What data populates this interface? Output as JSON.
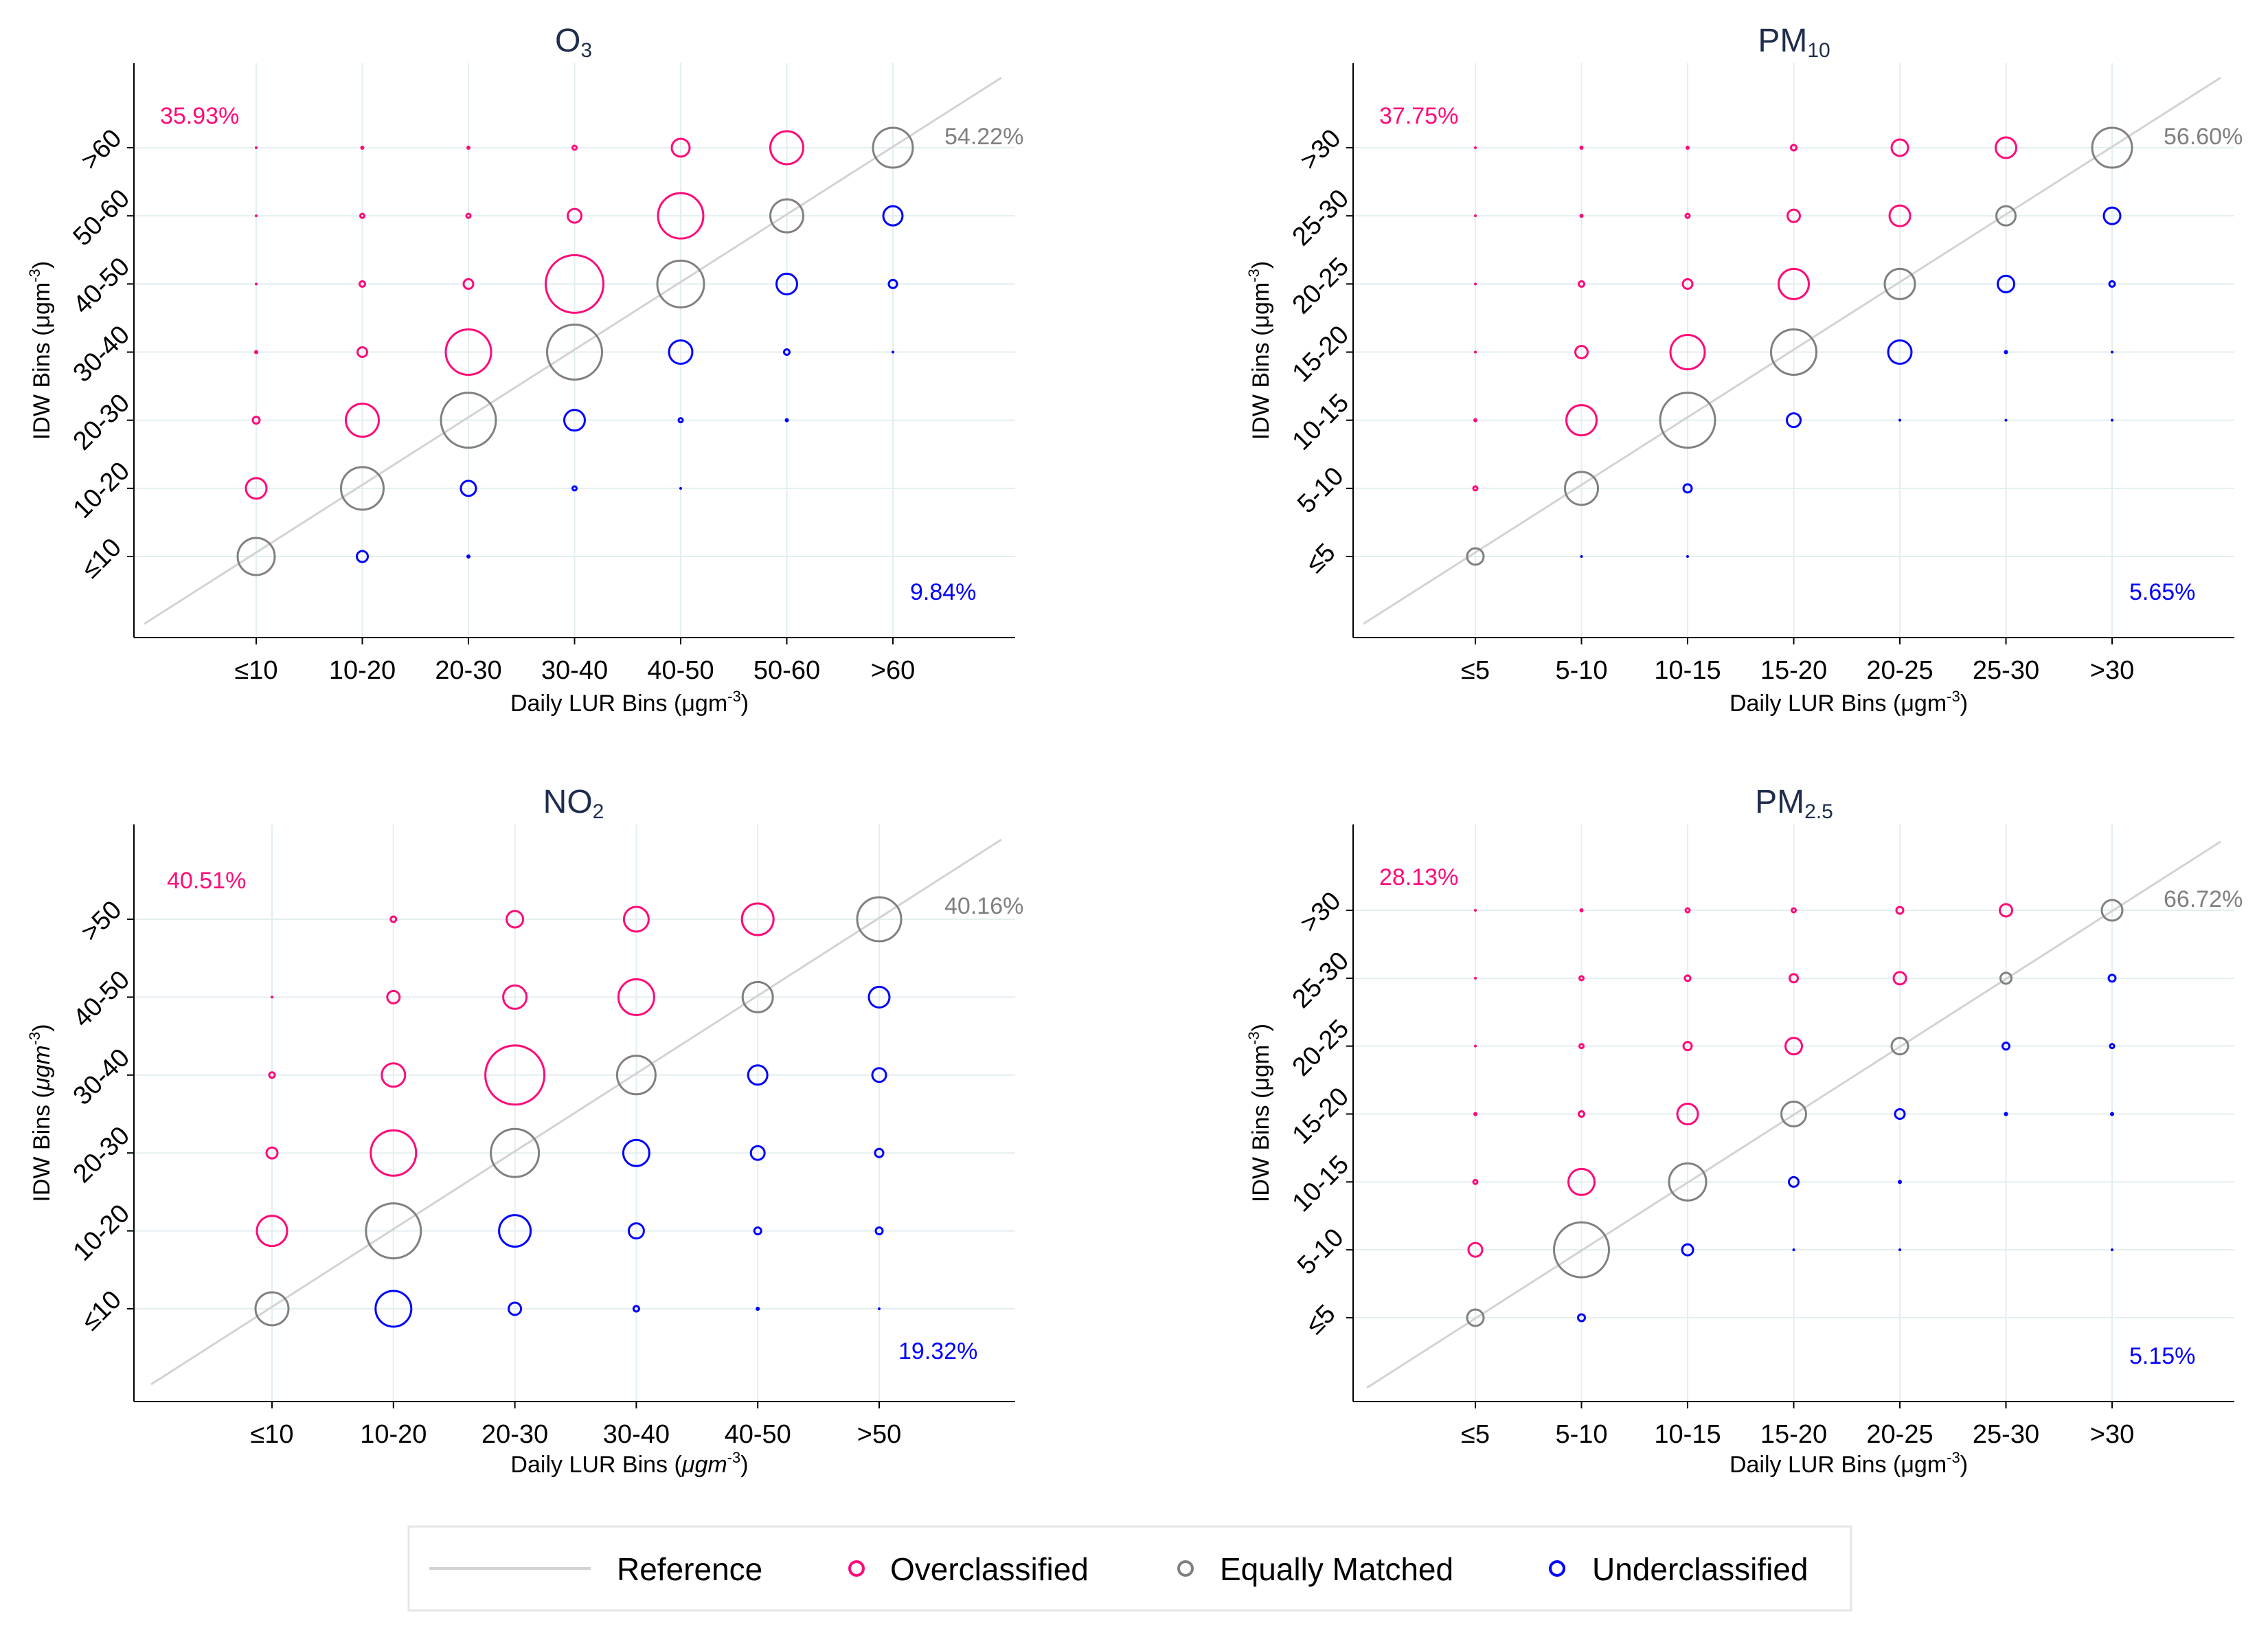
{
  "colors": {
    "over": "#ff0a78",
    "equal": "#808080",
    "under": "#0000ff",
    "reference": "#d3d3d3",
    "grid": "#e3eef0"
  },
  "legend": {
    "reference": "Reference",
    "over": "Overclassified",
    "equal": "Equally Matched",
    "under": "Underclassified"
  },
  "chart_data": [
    {
      "type": "scatter",
      "title_main": "O",
      "title_sub": "3",
      "xlabel": "Daily LUR Bins (μgm",
      "xlabel_sup": "-3",
      "xlabel_end": ")",
      "xlabel_italic": false,
      "ylabel": "IDW Bins (μgm",
      "ylabel_sup": "-3",
      "ylabel_end": ")",
      "ylabel_italic": false,
      "categories": [
        "≤10",
        "10-20",
        "20-30",
        "30-40",
        "40-50",
        "50-60",
        ">60"
      ],
      "over_pct": "35.93%",
      "equal_pct": "54.22%",
      "under_pct": "9.84%",
      "cells": [
        [
          0,
          0,
          "equal",
          27
        ],
        [
          1,
          1,
          "equal",
          31
        ],
        [
          2,
          2,
          "equal",
          40
        ],
        [
          3,
          3,
          "equal",
          40
        ],
        [
          4,
          4,
          "equal",
          34
        ],
        [
          5,
          5,
          "equal",
          24
        ],
        [
          6,
          6,
          "equal",
          29
        ],
        [
          0,
          1,
          "over",
          15
        ],
        [
          0,
          2,
          "over",
          5
        ],
        [
          0,
          3,
          "over",
          2
        ],
        [
          0,
          4,
          "over",
          1
        ],
        [
          0,
          5,
          "over",
          1
        ],
        [
          0,
          6,
          "over",
          1
        ],
        [
          1,
          2,
          "over",
          24
        ],
        [
          1,
          3,
          "over",
          7
        ],
        [
          1,
          4,
          "over",
          4
        ],
        [
          1,
          5,
          "over",
          3
        ],
        [
          1,
          6,
          "over",
          2
        ],
        [
          2,
          3,
          "over",
          33
        ],
        [
          2,
          4,
          "over",
          7
        ],
        [
          2,
          5,
          "over",
          3
        ],
        [
          2,
          6,
          "over",
          2
        ],
        [
          3,
          4,
          "over",
          42
        ],
        [
          3,
          5,
          "over",
          10
        ],
        [
          3,
          6,
          "over",
          3
        ],
        [
          4,
          5,
          "over",
          33
        ],
        [
          4,
          6,
          "over",
          13
        ],
        [
          5,
          6,
          "over",
          24
        ],
        [
          1,
          0,
          "under",
          8
        ],
        [
          2,
          0,
          "under",
          2
        ],
        [
          2,
          1,
          "under",
          11
        ],
        [
          3,
          1,
          "under",
          3
        ],
        [
          3,
          2,
          "under",
          15
        ],
        [
          4,
          1,
          "under",
          1
        ],
        [
          4,
          2,
          "under",
          3
        ],
        [
          4,
          3,
          "under",
          17
        ],
        [
          5,
          2,
          "under",
          2
        ],
        [
          5,
          3,
          "under",
          4
        ],
        [
          5,
          4,
          "under",
          15
        ],
        [
          6,
          3,
          "under",
          1
        ],
        [
          6,
          4,
          "under",
          6
        ],
        [
          6,
          5,
          "under",
          14
        ]
      ]
    },
    {
      "type": "scatter",
      "title_main": "PM",
      "title_sub": "10",
      "xlabel": "Daily LUR Bins (μgm",
      "xlabel_sup": "-3",
      "xlabel_end": ")",
      "xlabel_italic": false,
      "ylabel": "IDW Bins (μgm",
      "ylabel_sup": "-3",
      "ylabel_end": ")",
      "ylabel_italic": false,
      "categories": [
        "≤5",
        "5-10",
        "10-15",
        "15-20",
        "20-25",
        "25-30",
        ">30"
      ],
      "over_pct": "37.75%",
      "equal_pct": "56.60%",
      "under_pct": "5.65%",
      "cells": [
        [
          0,
          0,
          "equal",
          12
        ],
        [
          1,
          1,
          "equal",
          24
        ],
        [
          2,
          2,
          "equal",
          40
        ],
        [
          3,
          3,
          "equal",
          33
        ],
        [
          4,
          4,
          "equal",
          22
        ],
        [
          5,
          5,
          "equal",
          14
        ],
        [
          6,
          6,
          "equal",
          29
        ],
        [
          0,
          1,
          "over",
          3
        ],
        [
          0,
          2,
          "over",
          2
        ],
        [
          0,
          3,
          "over",
          1
        ],
        [
          0,
          4,
          "over",
          1
        ],
        [
          0,
          5,
          "over",
          1
        ],
        [
          0,
          6,
          "over",
          1
        ],
        [
          1,
          2,
          "over",
          22
        ],
        [
          1,
          3,
          "over",
          9
        ],
        [
          1,
          4,
          "over",
          4
        ],
        [
          1,
          5,
          "over",
          2
        ],
        [
          1,
          6,
          "over",
          2
        ],
        [
          2,
          3,
          "over",
          25
        ],
        [
          2,
          4,
          "over",
          7
        ],
        [
          2,
          5,
          "over",
          3
        ],
        [
          2,
          6,
          "over",
          2
        ],
        [
          3,
          4,
          "over",
          22
        ],
        [
          3,
          5,
          "over",
          9
        ],
        [
          3,
          6,
          "over",
          4
        ],
        [
          4,
          5,
          "over",
          15
        ],
        [
          4,
          6,
          "over",
          12
        ],
        [
          5,
          6,
          "over",
          15
        ],
        [
          1,
          0,
          "under",
          1
        ],
        [
          2,
          0,
          "under",
          1
        ],
        [
          2,
          1,
          "under",
          6
        ],
        [
          3,
          2,
          "under",
          10
        ],
        [
          4,
          2,
          "under",
          1
        ],
        [
          4,
          3,
          "under",
          17
        ],
        [
          5,
          2,
          "under",
          1
        ],
        [
          5,
          3,
          "under",
          2
        ],
        [
          5,
          4,
          "under",
          12
        ],
        [
          6,
          2,
          "under",
          1
        ],
        [
          6,
          3,
          "under",
          1
        ],
        [
          6,
          4,
          "under",
          4
        ],
        [
          6,
          5,
          "under",
          12
        ]
      ]
    },
    {
      "type": "scatter",
      "title_main": "NO",
      "title_sub": "2",
      "xlabel": "Daily LUR Bins (",
      "xlabel_sup": "-3",
      "xlabel_end": ")",
      "xlabel_italic": true,
      "ylabel": "IDW Bins (",
      "ylabel_sup": "-3",
      "ylabel_end": ")",
      "ylabel_italic": true,
      "categories": [
        "≤10",
        "10-20",
        "20-30",
        "30-40",
        "40-50",
        ">50"
      ],
      "over_pct": "40.51%",
      "equal_pct": "40.16%",
      "under_pct": "19.32%",
      "cells": [
        [
          0,
          0,
          "equal",
          24
        ],
        [
          1,
          1,
          "equal",
          40
        ],
        [
          2,
          2,
          "equal",
          35
        ],
        [
          3,
          3,
          "equal",
          28
        ],
        [
          4,
          4,
          "equal",
          22
        ],
        [
          5,
          5,
          "equal",
          32
        ],
        [
          0,
          1,
          "over",
          22
        ],
        [
          0,
          2,
          "over",
          8
        ],
        [
          0,
          3,
          "over",
          4
        ],
        [
          0,
          4,
          "over",
          1
        ],
        [
          1,
          2,
          "over",
          33
        ],
        [
          1,
          3,
          "over",
          17
        ],
        [
          1,
          4,
          "over",
          9
        ],
        [
          1,
          5,
          "over",
          4
        ],
        [
          2,
          3,
          "over",
          43
        ],
        [
          2,
          4,
          "over",
          17
        ],
        [
          2,
          5,
          "over",
          12
        ],
        [
          3,
          4,
          "over",
          26
        ],
        [
          3,
          5,
          "over",
          18
        ],
        [
          4,
          5,
          "over",
          23
        ],
        [
          1,
          0,
          "under",
          26
        ],
        [
          2,
          0,
          "under",
          9
        ],
        [
          2,
          1,
          "under",
          23
        ],
        [
          3,
          0,
          "under",
          4
        ],
        [
          3,
          1,
          "under",
          11
        ],
        [
          3,
          2,
          "under",
          19
        ],
        [
          4,
          0,
          "under",
          2
        ],
        [
          4,
          1,
          "under",
          5
        ],
        [
          4,
          2,
          "under",
          10
        ],
        [
          4,
          3,
          "under",
          14
        ],
        [
          5,
          0,
          "under",
          1
        ],
        [
          5,
          1,
          "under",
          5
        ],
        [
          5,
          2,
          "under",
          6
        ],
        [
          5,
          3,
          "under",
          10
        ],
        [
          5,
          4,
          "under",
          15
        ]
      ]
    },
    {
      "type": "scatter",
      "title_main": "PM",
      "title_sub": "2.5",
      "xlabel": "Daily LUR Bins (μgm",
      "xlabel_sup": "-3",
      "xlabel_end": ")",
      "xlabel_italic": false,
      "ylabel": "IDW Bins (μgm",
      "ylabel_sup": "-3",
      "ylabel_end": ")",
      "ylabel_italic": false,
      "categories": [
        "≤5",
        "5-10",
        "10-15",
        "15-20",
        "20-25",
        "25-30",
        ">30"
      ],
      "over_pct": "28.13%",
      "equal_pct": "66.72%",
      "under_pct": "5.15%",
      "cells": [
        [
          0,
          0,
          "equal",
          12
        ],
        [
          1,
          1,
          "equal",
          40
        ],
        [
          2,
          2,
          "equal",
          27
        ],
        [
          3,
          3,
          "equal",
          18
        ],
        [
          4,
          4,
          "equal",
          12
        ],
        [
          5,
          5,
          "equal",
          8
        ],
        [
          6,
          6,
          "equal",
          15
        ],
        [
          0,
          1,
          "over",
          10
        ],
        [
          0,
          2,
          "over",
          3
        ],
        [
          0,
          3,
          "over",
          2
        ],
        [
          0,
          4,
          "over",
          1
        ],
        [
          0,
          5,
          "over",
          1
        ],
        [
          0,
          6,
          "over",
          1
        ],
        [
          1,
          2,
          "over",
          19
        ],
        [
          1,
          3,
          "over",
          4
        ],
        [
          1,
          4,
          "over",
          3
        ],
        [
          1,
          5,
          "over",
          3
        ],
        [
          1,
          6,
          "over",
          2
        ],
        [
          2,
          3,
          "over",
          15
        ],
        [
          2,
          4,
          "over",
          6
        ],
        [
          2,
          5,
          "over",
          4
        ],
        [
          2,
          6,
          "over",
          3
        ],
        [
          3,
          4,
          "over",
          12
        ],
        [
          3,
          5,
          "over",
          6
        ],
        [
          3,
          6,
          "over",
          3
        ],
        [
          4,
          5,
          "over",
          9
        ],
        [
          4,
          6,
          "over",
          5
        ],
        [
          5,
          6,
          "over",
          9
        ],
        [
          1,
          0,
          "under",
          5
        ],
        [
          2,
          1,
          "under",
          8
        ],
        [
          3,
          1,
          "under",
          1
        ],
        [
          3,
          2,
          "under",
          7
        ],
        [
          4,
          1,
          "under",
          1
        ],
        [
          4,
          2,
          "under",
          2
        ],
        [
          4,
          3,
          "under",
          7
        ],
        [
          5,
          3,
          "under",
          2
        ],
        [
          5,
          4,
          "under",
          5
        ],
        [
          6,
          1,
          "under",
          1
        ],
        [
          6,
          3,
          "under",
          2
        ],
        [
          6,
          4,
          "under",
          3
        ],
        [
          6,
          5,
          "under",
          5
        ]
      ]
    }
  ]
}
